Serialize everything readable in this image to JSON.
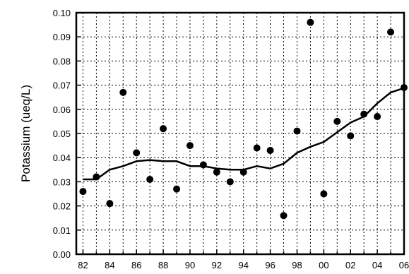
{
  "chart_data": {
    "type": "scatter",
    "ylabel": "Potassium (ueq/L)",
    "xlabel": "",
    "title": "",
    "x_ticks": [
      "82",
      "84",
      "86",
      "88",
      "90",
      "92",
      "94",
      "96",
      "98",
      "00",
      "02",
      "04",
      "06"
    ],
    "y_ticks": [
      "0.00",
      "0.01",
      "0.02",
      "0.03",
      "0.04",
      "0.05",
      "0.06",
      "0.07",
      "0.08",
      "0.09",
      "0.10"
    ],
    "xlim": [
      1981.5,
      2006
    ],
    "ylim": [
      0,
      0.1
    ],
    "grid": true,
    "series": [
      {
        "type": "scatter",
        "points": [
          [
            1982,
            0.026
          ],
          [
            1983,
            0.032
          ],
          [
            1984,
            0.021
          ],
          [
            1985,
            0.067
          ],
          [
            1986,
            0.042
          ],
          [
            1987,
            0.031
          ],
          [
            1988,
            0.052
          ],
          [
            1989,
            0.027
          ],
          [
            1990,
            0.045
          ],
          [
            1991,
            0.037
          ],
          [
            1992,
            0.034
          ],
          [
            1993,
            0.03
          ],
          [
            1994,
            0.034
          ],
          [
            1995,
            0.044
          ],
          [
            1996,
            0.043
          ],
          [
            1997,
            0.016
          ],
          [
            1998,
            0.051
          ],
          [
            1999,
            0.096
          ],
          [
            2000,
            0.025
          ],
          [
            2001,
            0.055
          ],
          [
            2002,
            0.049
          ],
          [
            2003,
            0.058
          ],
          [
            2004,
            0.057
          ],
          [
            2005,
            0.092
          ],
          [
            2006,
            0.069
          ]
        ]
      },
      {
        "type": "line",
        "points": [
          [
            1982,
            0.031
          ],
          [
            1983,
            0.031
          ],
          [
            1984,
            0.035
          ],
          [
            1985,
            0.0365
          ],
          [
            1986,
            0.0385
          ],
          [
            1987,
            0.039
          ],
          [
            1988,
            0.0385
          ],
          [
            1989,
            0.0385
          ],
          [
            1990,
            0.0365
          ],
          [
            1991,
            0.0365
          ],
          [
            1992,
            0.0355
          ],
          [
            1993,
            0.035
          ],
          [
            1994,
            0.035
          ],
          [
            1995,
            0.0365
          ],
          [
            1996,
            0.0355
          ],
          [
            1997,
            0.0375
          ],
          [
            1998,
            0.042
          ],
          [
            1999,
            0.0445
          ],
          [
            2000,
            0.0465
          ],
          [
            2001,
            0.0505
          ],
          [
            2002,
            0.0545
          ],
          [
            2003,
            0.057
          ],
          [
            2004,
            0.0625
          ],
          [
            2005,
            0.067
          ],
          [
            2006,
            0.0688
          ]
        ]
      }
    ]
  }
}
